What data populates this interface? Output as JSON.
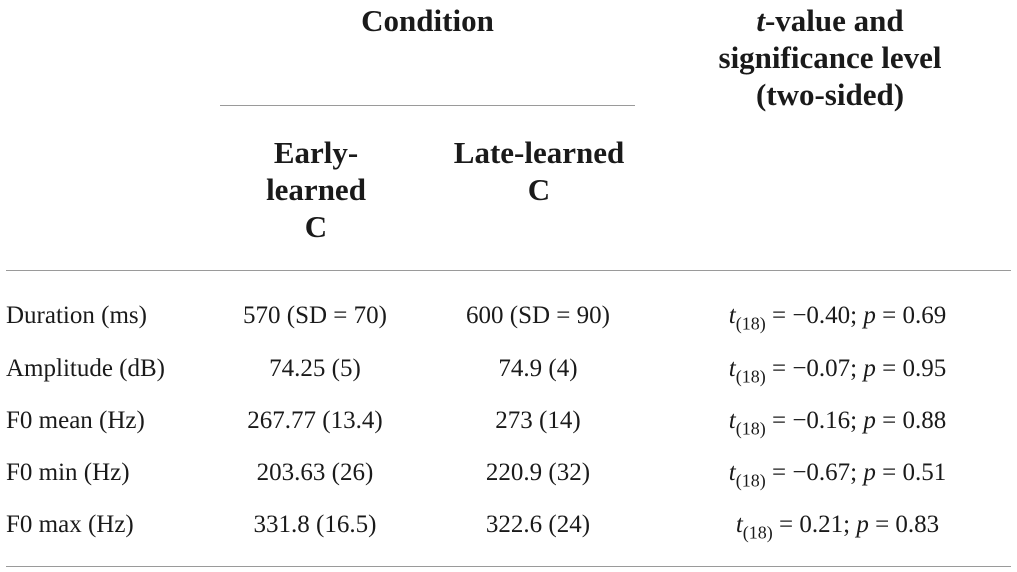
{
  "header": {
    "condition": "Condition",
    "early": [
      "Early-",
      "learned",
      "C"
    ],
    "late": [
      "Late-learned",
      "C"
    ],
    "tvalue": {
      "t": "t",
      "line1_rest": "-value and",
      "line2": "significance level",
      "line3": "(two-sided)"
    }
  },
  "rows": [
    {
      "label": "Duration (ms)",
      "early": "570 (SD = 70)",
      "late": "600 (SD = 90)",
      "stat": {
        "t": "t",
        "sub": "(18)",
        "tval": " = −0.40; ",
        "p": "p",
        "pval": " = 0.69"
      }
    },
    {
      "label": "Amplitude (dB)",
      "early": "74.25 (5)",
      "late": "74.9 (4)",
      "stat": {
        "t": "t",
        "sub": "(18)",
        "tval": " = −0.07; ",
        "p": "p",
        "pval": " = 0.95"
      }
    },
    {
      "label": "F0 mean (Hz)",
      "early": "267.77 (13.4)",
      "late": "273 (14)",
      "stat": {
        "t": "t",
        "sub": "(18)",
        "tval": " = −0.16; ",
        "p": "p",
        "pval": " = 0.88"
      }
    },
    {
      "label": "F0 min (Hz)",
      "early": "203.63 (26)",
      "late": "220.9 (32)",
      "stat": {
        "t": "t",
        "sub": "(18)",
        "tval": " = −0.67; ",
        "p": "p",
        "pval": " = 0.51"
      }
    },
    {
      "label": "F0 max (Hz)",
      "early": "331.8 (16.5)",
      "late": "322.6 (24)",
      "stat": {
        "t": "t",
        "sub": "(18)",
        "tval": " = 0.21; ",
        "p": "p",
        "pval": " = 0.83"
      }
    }
  ]
}
